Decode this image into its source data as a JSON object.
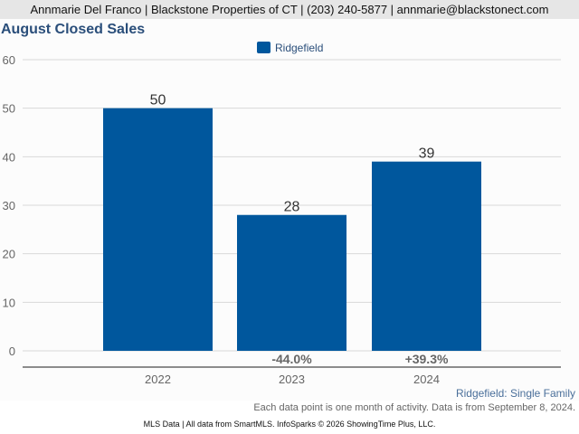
{
  "header": {
    "contact": "Annmarie Del Franco | Blackstone Properties of CT | (203) 240-5877 | annmarie@blackstonect.com"
  },
  "colors": {
    "bar": "#00579d",
    "title": "#2a4e7a"
  },
  "chart_data": {
    "type": "bar",
    "title": "August Closed Sales",
    "categories": [
      "2022",
      "2023",
      "2024"
    ],
    "series": [
      {
        "name": "Ridgefield",
        "values": [
          50,
          28,
          39
        ]
      }
    ],
    "data_labels": [
      "50",
      "28",
      "39"
    ],
    "change_labels": [
      "",
      "-44.0%",
      "+39.3%"
    ],
    "xlabel": "",
    "ylabel": "",
    "ylim": [
      0,
      60
    ],
    "yticks": [
      0,
      10,
      20,
      30,
      40,
      50,
      60
    ],
    "grid": true,
    "legend": {
      "position": "top-center",
      "entries": [
        "Ridgefield"
      ]
    }
  },
  "subtitle": "Ridgefield: Single Family",
  "note": "Each data point is one month of activity. Data is from September 8, 2024.",
  "footer": "MLS Data | All data from SmartMLS. InfoSparks © 2026 ShowingTime Plus, LLC."
}
